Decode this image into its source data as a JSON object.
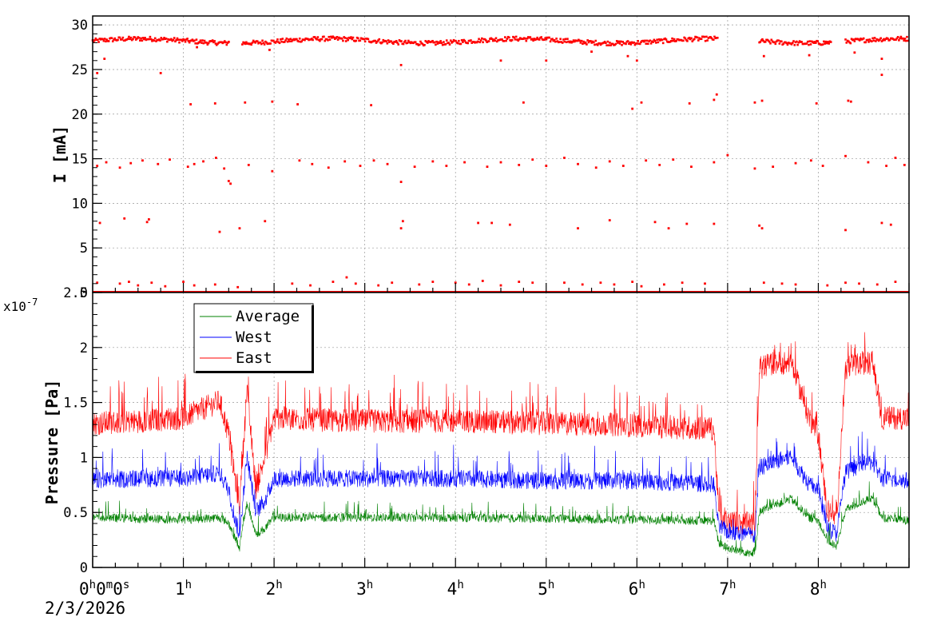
{
  "chart_data": [
    {
      "type": "scatter",
      "ylabel": "I [mA]",
      "ylim": [
        0,
        31
      ],
      "yticks": [
        "0",
        "5",
        "10",
        "15",
        "20",
        "25",
        "30"
      ],
      "grid": true,
      "series": [
        {
          "color": "#ff0000",
          "description_bands": [
            {
              "y": 28.2,
              "segments": [
                [
                  0.0,
                  1.5
                ],
                [
                  1.65,
                  6.9
                ],
                [
                  7.35,
                  8.15
                ],
                [
                  8.3,
                  9.0
                ]
              ]
            },
            {
              "y": 0.0,
              "segments": [
                [
                  0.0,
                  9.0
                ]
              ]
            }
          ],
          "points": [
            [
              0.05,
              24.6
            ],
            [
              0.13,
              26.2
            ],
            [
              0.75,
              24.6
            ],
            [
              1.15,
              27.5
            ],
            [
              1.5,
              28.1
            ],
            [
              1.68,
              28.0
            ],
            [
              1.95,
              27.2
            ],
            [
              3.4,
              25.5
            ],
            [
              4.5,
              26.0
            ],
            [
              5.0,
              26.0
            ],
            [
              5.5,
              27.0
            ],
            [
              5.9,
              26.5
            ],
            [
              6.0,
              26.0
            ],
            [
              7.4,
              26.5
            ],
            [
              7.9,
              26.6
            ],
            [
              8.4,
              26.9
            ],
            [
              8.7,
              26.2
            ],
            [
              1.08,
              21.1
            ],
            [
              1.35,
              21.2
            ],
            [
              1.68,
              21.3
            ],
            [
              1.98,
              21.4
            ],
            [
              2.26,
              21.1
            ],
            [
              3.07,
              21.0
            ],
            [
              4.75,
              21.3
            ],
            [
              5.95,
              20.6
            ],
            [
              6.05,
              21.3
            ],
            [
              6.58,
              21.2
            ],
            [
              6.85,
              21.6
            ],
            [
              6.88,
              22.2
            ],
            [
              7.3,
              21.3
            ],
            [
              7.38,
              21.5
            ],
            [
              7.98,
              21.2
            ],
            [
              8.33,
              21.5
            ],
            [
              8.36,
              21.4
            ],
            [
              8.7,
              24.4
            ],
            [
              0.05,
              14.2
            ],
            [
              0.15,
              14.6
            ],
            [
              0.3,
              14.0
            ],
            [
              0.42,
              14.5
            ],
            [
              0.55,
              14.8
            ],
            [
              0.72,
              14.4
            ],
            [
              0.85,
              14.9
            ],
            [
              1.05,
              14.1
            ],
            [
              1.12,
              14.4
            ],
            [
              1.22,
              14.7
            ],
            [
              1.36,
              15.1
            ],
            [
              1.45,
              13.9
            ],
            [
              1.5,
              12.5
            ],
            [
              1.52,
              12.2
            ],
            [
              1.72,
              14.3
            ],
            [
              1.98,
              13.6
            ],
            [
              2.28,
              14.8
            ],
            [
              2.42,
              14.4
            ],
            [
              2.6,
              14.0
            ],
            [
              2.78,
              14.7
            ],
            [
              2.95,
              14.2
            ],
            [
              3.1,
              14.8
            ],
            [
              3.25,
              14.4
            ],
            [
              3.4,
              12.4
            ],
            [
              3.55,
              14.1
            ],
            [
              3.75,
              14.7
            ],
            [
              3.9,
              14.2
            ],
            [
              4.1,
              14.6
            ],
            [
              4.35,
              14.1
            ],
            [
              4.5,
              14.6
            ],
            [
              4.7,
              14.3
            ],
            [
              4.85,
              14.9
            ],
            [
              5.0,
              14.2
            ],
            [
              5.2,
              15.1
            ],
            [
              5.35,
              14.4
            ],
            [
              5.55,
              14.0
            ],
            [
              5.7,
              14.7
            ],
            [
              5.85,
              14.2
            ],
            [
              6.1,
              14.8
            ],
            [
              6.25,
              14.3
            ],
            [
              6.4,
              14.9
            ],
            [
              6.6,
              14.1
            ],
            [
              6.85,
              14.6
            ],
            [
              7.0,
              15.4
            ],
            [
              7.3,
              13.9
            ],
            [
              7.5,
              14.1
            ],
            [
              7.75,
              14.5
            ],
            [
              7.92,
              14.8
            ],
            [
              8.05,
              14.2
            ],
            [
              8.3,
              15.3
            ],
            [
              8.55,
              14.6
            ],
            [
              8.75,
              14.2
            ],
            [
              8.85,
              15.1
            ],
            [
              8.95,
              14.3
            ],
            [
              0.08,
              7.8
            ],
            [
              0.35,
              8.3
            ],
            [
              0.6,
              7.9
            ],
            [
              0.62,
              8.2
            ],
            [
              1.4,
              6.8
            ],
            [
              1.62,
              7.2
            ],
            [
              1.9,
              8.0
            ],
            [
              3.4,
              7.2
            ],
            [
              3.42,
              8.0
            ],
            [
              4.25,
              7.8
            ],
            [
              4.4,
              7.8
            ],
            [
              4.6,
              7.6
            ],
            [
              5.35,
              7.2
            ],
            [
              5.7,
              8.1
            ],
            [
              6.2,
              7.9
            ],
            [
              6.35,
              7.2
            ],
            [
              6.55,
              7.7
            ],
            [
              6.85,
              7.7
            ],
            [
              7.35,
              7.5
            ],
            [
              7.38,
              7.2
            ],
            [
              8.3,
              7.0
            ],
            [
              8.7,
              7.8
            ],
            [
              8.8,
              7.6
            ],
            [
              0.05,
              1.1
            ],
            [
              0.3,
              1.0
            ],
            [
              0.4,
              1.2
            ],
            [
              0.5,
              0.8
            ],
            [
              0.65,
              1.1
            ],
            [
              0.8,
              0.7
            ],
            [
              1.0,
              1.2
            ],
            [
              1.12,
              0.8
            ],
            [
              1.35,
              0.9
            ],
            [
              1.6,
              0.6
            ],
            [
              2.2,
              1.0
            ],
            [
              2.4,
              0.8
            ],
            [
              2.65,
              1.2
            ],
            [
              2.8,
              1.7
            ],
            [
              2.9,
              1.0
            ],
            [
              3.15,
              0.8
            ],
            [
              3.3,
              1.1
            ],
            [
              3.6,
              0.9
            ],
            [
              3.75,
              1.2
            ],
            [
              4.0,
              1.1
            ],
            [
              4.15,
              0.9
            ],
            [
              4.3,
              1.3
            ],
            [
              4.5,
              0.8
            ],
            [
              4.7,
              1.2
            ],
            [
              4.85,
              1.1
            ],
            [
              5.2,
              1.1
            ],
            [
              5.4,
              0.9
            ],
            [
              5.6,
              1.1
            ],
            [
              5.75,
              0.9
            ],
            [
              5.95,
              1.2
            ],
            [
              6.05,
              0.7
            ],
            [
              6.3,
              0.9
            ],
            [
              6.5,
              1.1
            ],
            [
              6.75,
              1.0
            ],
            [
              7.4,
              1.1
            ],
            [
              7.6,
              1.0
            ],
            [
              7.75,
              0.9
            ],
            [
              8.1,
              0.8
            ],
            [
              8.3,
              1.1
            ],
            [
              8.45,
              1.0
            ],
            [
              8.65,
              0.9
            ],
            [
              8.85,
              1.2
            ]
          ]
        }
      ]
    },
    {
      "type": "line",
      "ylabel": "Pressure [Pa]",
      "ylim": [
        0,
        2.5
      ],
      "y_multiplier": "x10",
      "y_exponent": "-7",
      "yticks": [
        "0",
        "0.5",
        "1",
        "1.5",
        "2",
        "2.5"
      ],
      "grid": true,
      "legend_placement": "top-left",
      "series": [
        {
          "name": "Average",
          "color": "#008000",
          "noise": 0.08,
          "x": [
            0,
            0.5,
            1.0,
            1.4,
            1.5,
            1.55,
            1.62,
            1.7,
            1.8,
            1.9,
            2.0,
            2.5,
            3.0,
            4.0,
            5.0,
            6.0,
            6.85,
            6.9,
            7.0,
            7.3,
            7.35,
            7.5,
            7.7,
            7.9,
            8.0,
            8.1,
            8.2,
            8.3,
            8.5,
            8.6,
            8.7,
            9.0
          ],
          "y": [
            0.45,
            0.44,
            0.43,
            0.45,
            0.4,
            0.3,
            0.18,
            0.58,
            0.3,
            0.35,
            0.45,
            0.45,
            0.45,
            0.45,
            0.44,
            0.43,
            0.42,
            0.22,
            0.17,
            0.12,
            0.5,
            0.56,
            0.62,
            0.45,
            0.42,
            0.25,
            0.18,
            0.52,
            0.6,
            0.62,
            0.45,
            0.42
          ]
        },
        {
          "name": "West",
          "color": "#0000ff",
          "noise": 0.16,
          "x": [
            0,
            0.5,
            1.0,
            1.4,
            1.5,
            1.55,
            1.62,
            1.7,
            1.8,
            1.9,
            2.0,
            2.5,
            3.0,
            4.0,
            5.0,
            6.0,
            6.85,
            6.9,
            7.0,
            7.3,
            7.35,
            7.5,
            7.7,
            7.9,
            8.0,
            8.1,
            8.2,
            8.3,
            8.5,
            8.6,
            8.7,
            9.0
          ],
          "y": [
            0.78,
            0.8,
            0.8,
            0.85,
            0.7,
            0.5,
            0.28,
            1.0,
            0.5,
            0.6,
            0.8,
            0.8,
            0.8,
            0.8,
            0.78,
            0.78,
            0.75,
            0.36,
            0.32,
            0.28,
            0.9,
            0.95,
            1.0,
            0.75,
            0.7,
            0.35,
            0.3,
            0.85,
            0.95,
            0.95,
            0.8,
            0.78
          ]
        },
        {
          "name": "East",
          "color": "#ff0000",
          "noise": 0.22,
          "x": [
            0,
            0.5,
            1.0,
            1.4,
            1.5,
            1.55,
            1.62,
            1.7,
            1.8,
            1.9,
            2.0,
            2.5,
            3.0,
            4.0,
            5.0,
            6.0,
            6.85,
            6.9,
            7.0,
            7.3,
            7.35,
            7.5,
            7.7,
            7.9,
            8.0,
            8.1,
            8.2,
            8.3,
            8.5,
            8.6,
            8.7,
            9.0
          ],
          "y": [
            1.3,
            1.32,
            1.35,
            1.5,
            1.2,
            0.9,
            0.55,
            1.6,
            0.7,
            1.0,
            1.35,
            1.33,
            1.32,
            1.32,
            1.3,
            1.28,
            1.25,
            0.5,
            0.4,
            0.38,
            1.8,
            1.85,
            1.85,
            1.35,
            1.2,
            0.5,
            0.42,
            1.8,
            1.85,
            1.85,
            1.35,
            1.35
          ]
        }
      ]
    }
  ],
  "time_axis": {
    "xlim": [
      0,
      9
    ],
    "ticks": [
      {
        "value": 0,
        "main": "0",
        "parts": [
          [
            "h",
            "0"
          ],
          [
            "m",
            "0"
          ],
          [
            "s",
            ""
          ]
        ]
      },
      {
        "value": 1,
        "main": "1",
        "parts": [
          [
            "h",
            ""
          ]
        ]
      },
      {
        "value": 2,
        "main": "2",
        "parts": [
          [
            "h",
            ""
          ]
        ]
      },
      {
        "value": 3,
        "main": "3",
        "parts": [
          [
            "h",
            ""
          ]
        ]
      },
      {
        "value": 4,
        "main": "4",
        "parts": [
          [
            "h",
            ""
          ]
        ]
      },
      {
        "value": 5,
        "main": "5",
        "parts": [
          [
            "h",
            ""
          ]
        ]
      },
      {
        "value": 6,
        "main": "6",
        "parts": [
          [
            "h",
            ""
          ]
        ]
      },
      {
        "value": 7,
        "main": "7",
        "parts": [
          [
            "h",
            ""
          ]
        ]
      },
      {
        "value": 8,
        "main": "8",
        "parts": [
          [
            "h",
            ""
          ]
        ]
      }
    ],
    "date": "2/3/2026"
  }
}
